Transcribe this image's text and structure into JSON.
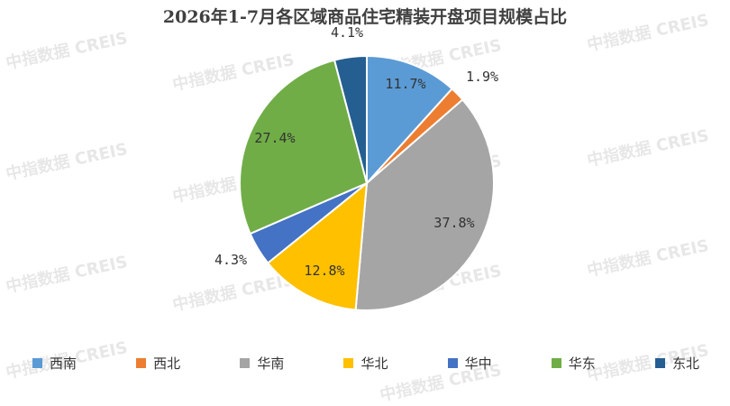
{
  "chart_data": {
    "type": "pie",
    "title": "2026年1-7月各区域商品住宅精装开盘项目规模占比",
    "categories": [
      "西南",
      "西北",
      "华南",
      "华北",
      "华中",
      "华东",
      "东北"
    ],
    "values": [
      11.7,
      1.9,
      37.8,
      12.8,
      4.3,
      27.4,
      4.1
    ],
    "labels": [
      "11.7%",
      "1.9%",
      "37.8%",
      "12.8%",
      "4.3%",
      "27.4%",
      "4.1%"
    ],
    "colors": [
      "#5b9bd5",
      "#ed7d31",
      "#a5a5a5",
      "#ffc000",
      "#4472c4",
      "#70ad47",
      "#255e91"
    ],
    "legend": "bottom"
  },
  "watermark": "中指数据 CREIS"
}
